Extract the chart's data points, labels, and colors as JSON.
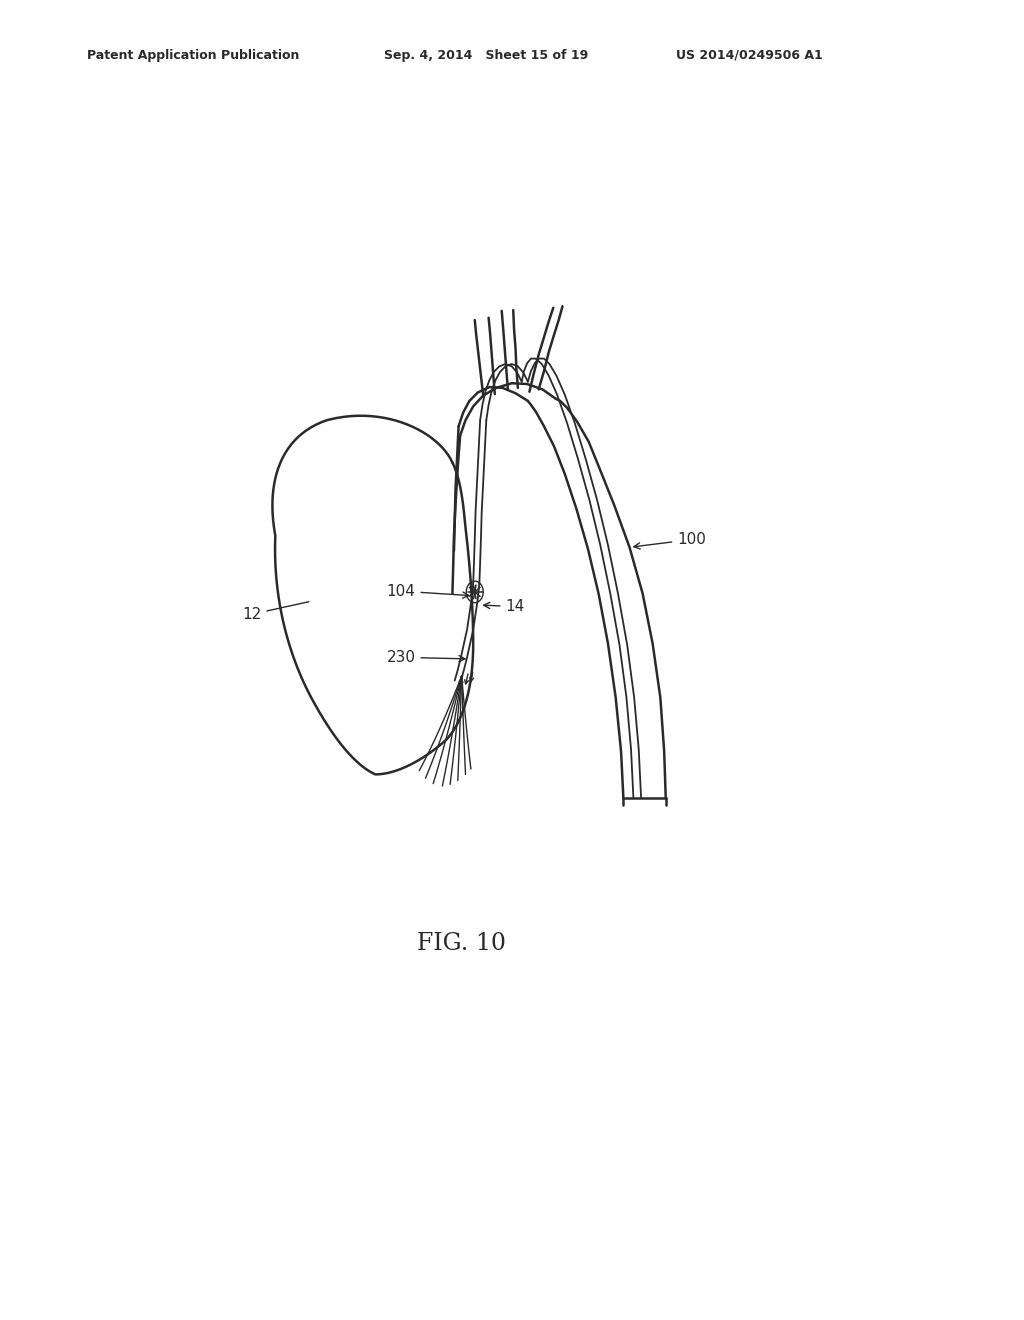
{
  "background_color": "#ffffff",
  "line_color": "#2a2a2a",
  "header_left": "Patent Application Publication",
  "header_center": "Sep. 4, 2014   Sheet 15 of 19",
  "header_right": "US 2014/0249506 A1",
  "fig_label": "FIG. 10",
  "label_fontsize": 11,
  "header_fontsize": 9,
  "fig_label_fontsize": 17,
  "lw_main": 1.8,
  "lw_thin": 1.3
}
